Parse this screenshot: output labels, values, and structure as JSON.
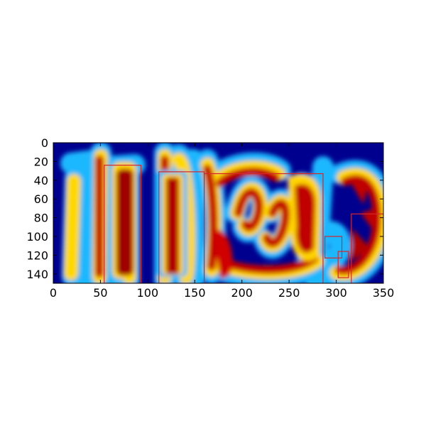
{
  "chart_data": {
    "type": "heatmap",
    "title": "",
    "xlabel": "",
    "ylabel": "",
    "xlim": [
      0,
      350
    ],
    "ylim": [
      150,
      0
    ],
    "y_axis_inverted": true,
    "colormap": "jet",
    "xticks": [
      "0",
      "50",
      "100",
      "150",
      "200",
      "250",
      "300",
      "350"
    ],
    "yticks": [
      "0",
      "20",
      "40",
      "60",
      "80",
      "100",
      "120",
      "140"
    ],
    "grid": false,
    "legend": "none",
    "bbox_color": "#d62728",
    "boxes": [
      {
        "x0": 54,
        "y0": 24,
        "x1": 93,
        "y1": 150
      },
      {
        "x0": 112,
        "y0": 31,
        "x1": 160,
        "y1": 150
      },
      {
        "x0": 160,
        "y0": 33,
        "x1": 286,
        "y1": 150
      },
      {
        "x0": 288,
        "y0": 100,
        "x1": 306,
        "y1": 123
      },
      {
        "x0": 302,
        "y0": 116,
        "x1": 313,
        "y1": 144
      },
      {
        "x0": 316,
        "y0": 76,
        "x1": 350,
        "y1": 150
      }
    ]
  }
}
